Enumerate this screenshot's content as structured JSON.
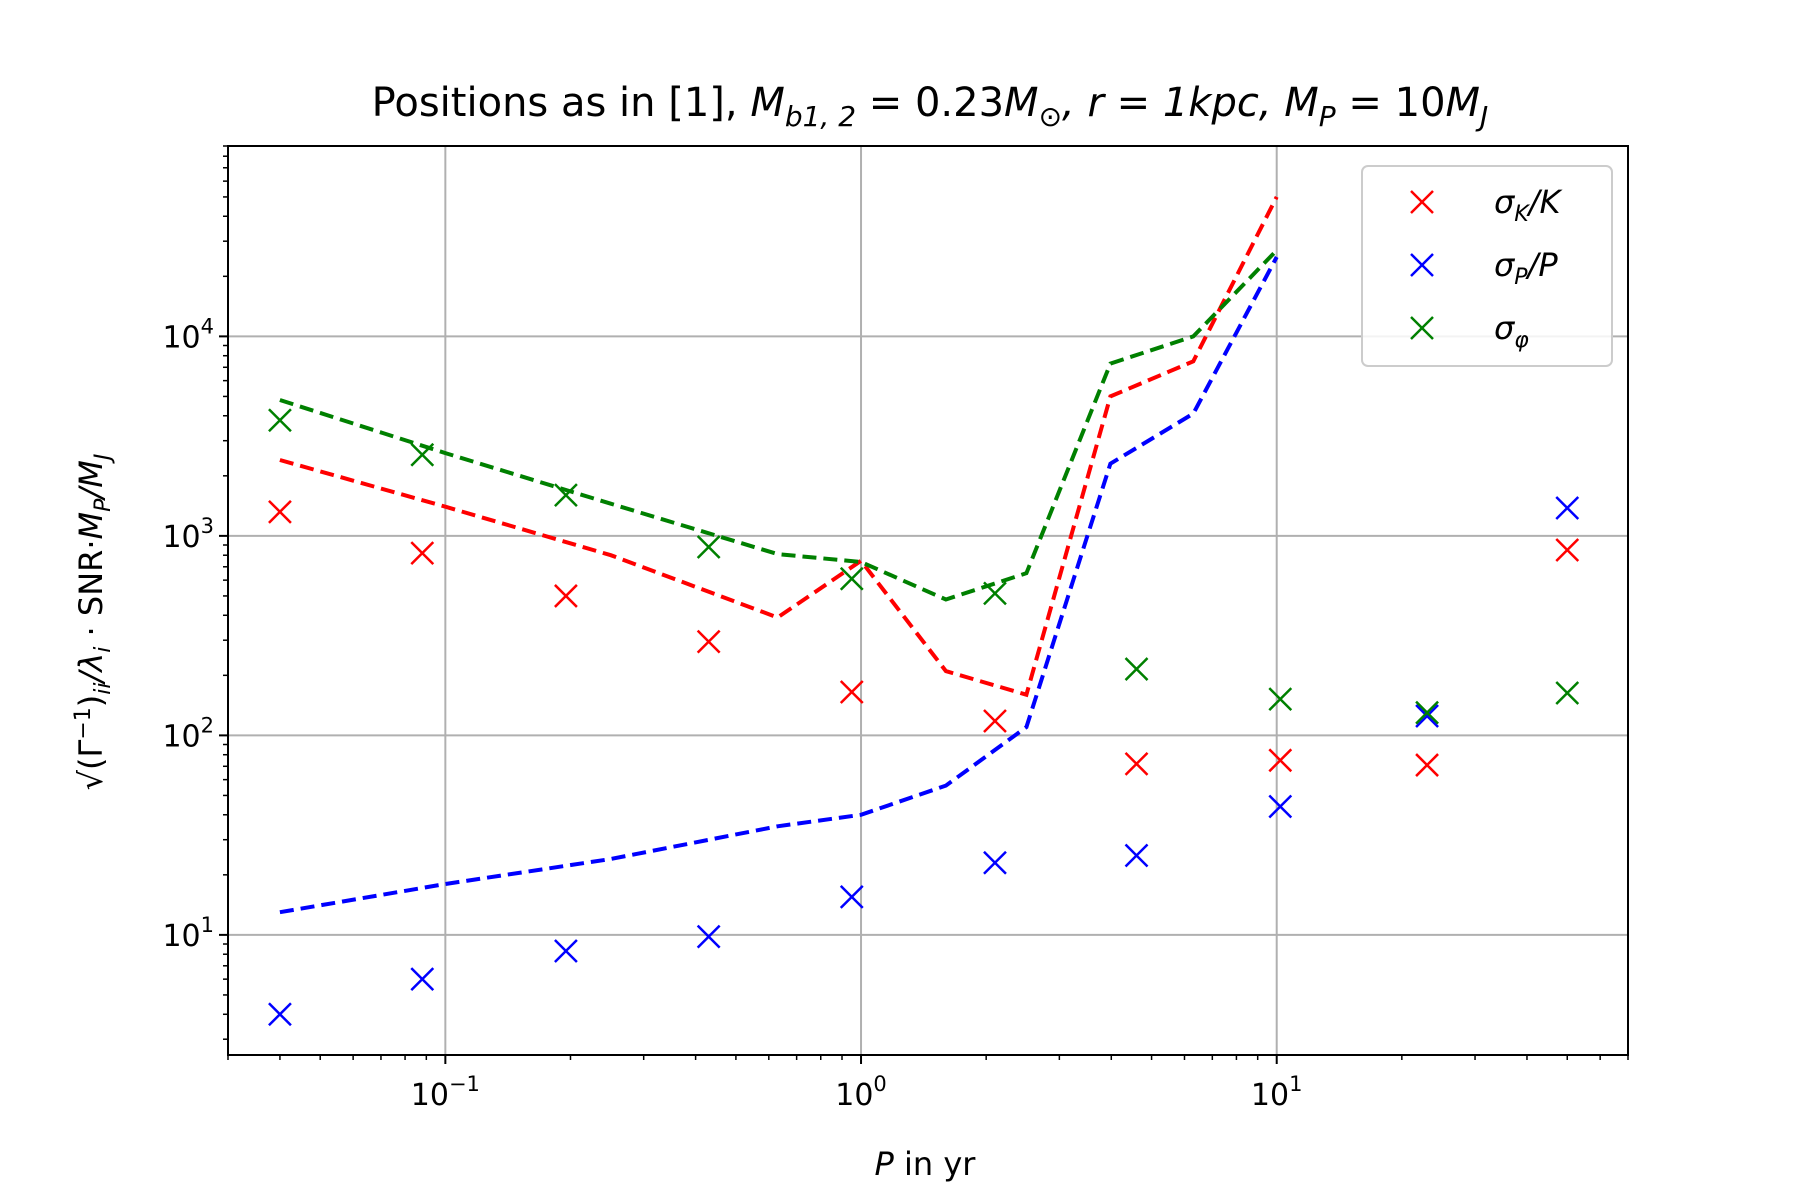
{
  "chart_data": {
    "type": "scatter",
    "title": "Positions as in [1], M_{b1,2}=0.23M_⊙, r=1kpc, M_P=10M_J",
    "title_parts": {
      "prefix": "Positions as in [1], ",
      "m": "M",
      "m_sub": "b1, 2",
      "eq1": " = 0.23",
      "sun": "M",
      "sun_sub": "⊙",
      "r_part": ", r = 1kpc, ",
      "mp": "M",
      "mp_sub": "P",
      "eq2": " = 10",
      "mj": "M",
      "mj_sub": "J"
    },
    "xlabel": "P in yr",
    "xlabel_parts": {
      "var": "P",
      "rest": " in yr"
    },
    "ylabel": "√(Γ⁻¹)ii/λi · SNR·MP/MJ",
    "ylabel_parts": {
      "sqrt": "√",
      "inner": "(Γ",
      "inv": "−1",
      "close": ")",
      "ii": "ii",
      "slash1": "/λ",
      "i": "i",
      "dot": " · SNR·",
      "mp": "M",
      "mp_sub": "P",
      "slash2": "/",
      "mj": "M",
      "mj_sub": "J"
    },
    "xscale": "log",
    "yscale": "log",
    "xlim": [
      0.03,
      0.07
    ],
    "xlim_max": 70,
    "ylim": [
      2.5,
      90000
    ],
    "x_ticks": [
      {
        "value": 0.1,
        "base": "10",
        "exp": "−1"
      },
      {
        "value": 1,
        "base": "10",
        "exp": "0"
      },
      {
        "value": 10,
        "base": "10",
        "exp": "1"
      }
    ],
    "y_ticks": [
      {
        "value": 10,
        "base": "10",
        "exp": "1"
      },
      {
        "value": 100,
        "base": "10",
        "exp": "2"
      },
      {
        "value": 1000,
        "base": "10",
        "exp": "3"
      },
      {
        "value": 10000,
        "base": "10",
        "exp": "4"
      }
    ],
    "grid": true,
    "legend_position": "top-right",
    "series": [
      {
        "name": "σK/K",
        "label_base": "σ",
        "label_sub": "K",
        "label_rest": "/K",
        "color": "#ff0000",
        "marker": "x",
        "points": {
          "x": [
            0.04,
            0.088,
            0.195,
            0.43,
            0.95,
            2.1,
            4.6,
            10.2,
            23,
            50
          ],
          "y": [
            1320,
            820,
            500,
            295,
            165,
            118,
            72,
            75,
            71,
            850
          ]
        },
        "dashed": {
          "x": [
            0.04,
            0.1,
            0.25,
            0.63,
            1.0,
            1.6,
            2.5,
            3.98,
            6.3,
            10
          ],
          "y": [
            2400,
            1400,
            800,
            390,
            750,
            210,
            160,
            5000,
            7500,
            50000
          ]
        }
      },
      {
        "name": "σP/P",
        "label_base": "σ",
        "label_sub": "P",
        "label_rest": "/P",
        "color": "#0000ff",
        "marker": "x",
        "points": {
          "x": [
            0.04,
            0.088,
            0.195,
            0.43,
            0.95,
            2.1,
            4.6,
            10.2,
            23,
            50
          ],
          "y": [
            4,
            6,
            8.3,
            9.8,
            15.5,
            23,
            25,
            44,
            125,
            1380
          ]
        },
        "dashed": {
          "x": [
            0.04,
            0.1,
            0.25,
            0.63,
            1.0,
            1.6,
            2.5,
            3.98,
            6.3,
            10
          ],
          "y": [
            13,
            18,
            24,
            35,
            40,
            56,
            110,
            2300,
            4100,
            25000
          ]
        }
      },
      {
        "name": "σφ",
        "label_base": "σ",
        "label_sub": "φ",
        "label_rest": "",
        "color": "#008000",
        "marker": "x",
        "points": {
          "x": [
            0.04,
            0.088,
            0.195,
            0.43,
            0.95,
            2.1,
            4.6,
            10.2,
            23,
            50
          ],
          "y": [
            3800,
            2550,
            1600,
            880,
            610,
            515,
            215,
            152,
            130,
            163
          ]
        },
        "dashed": {
          "x": [
            0.04,
            0.1,
            0.25,
            0.63,
            1.0,
            1.6,
            2.5,
            3.98,
            6.3,
            10
          ],
          "y": [
            4800,
            2600,
            1450,
            810,
            740,
            480,
            650,
            7300,
            10000,
            27000
          ]
        }
      }
    ]
  }
}
